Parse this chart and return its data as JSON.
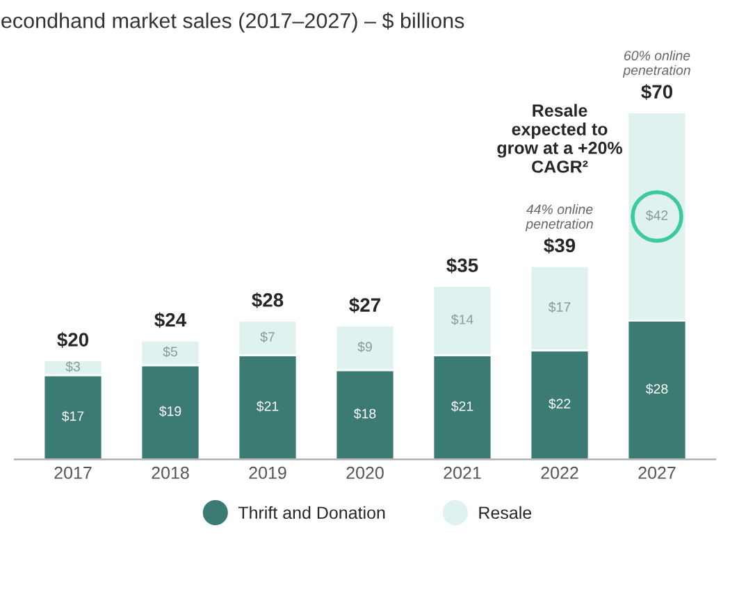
{
  "chart_data": {
    "type": "bar",
    "title": "econdhand market sales (2017–2027) – $ billions",
    "categories": [
      "2017",
      "2018",
      "2019",
      "2020",
      "2021",
      "2022",
      "2027"
    ],
    "stacked": true,
    "series": [
      {
        "name": "Thrift and Donation",
        "color": "#3b7b73",
        "values": [
          17,
          19,
          21,
          18,
          21,
          22,
          28
        ],
        "value_labels": [
          "$17",
          "$19",
          "$21",
          "$18",
          "$21",
          "$22",
          "$28"
        ]
      },
      {
        "name": "Resale",
        "color": "#dff2ef",
        "values": [
          3,
          5,
          7,
          9,
          14,
          17,
          42
        ],
        "value_labels": [
          "$3",
          "$5",
          "$7",
          "$9",
          "$14",
          "$17",
          "$42"
        ]
      }
    ],
    "totals": [
      "$20",
      "$24",
      "$28",
      "$27",
      "$35",
      "$39",
      "$70"
    ],
    "annotations": [
      {
        "text": "44% online\npenetration",
        "x": "2022",
        "y": 39
      },
      {
        "text": "60% online\npenetration",
        "x": "2027",
        "y": 70
      },
      "Resale\nexpected to\ngrow at a +20%\nCAGR²"
    ],
    "legend": "bottom",
    "grid": false
  }
}
